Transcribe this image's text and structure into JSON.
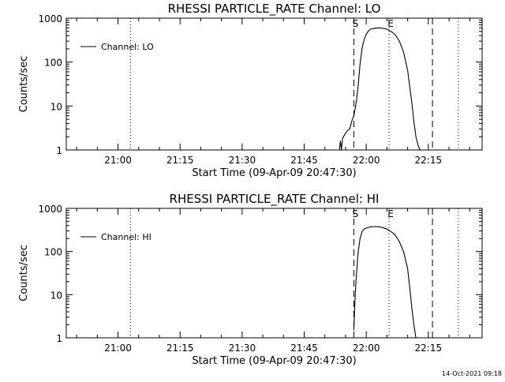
{
  "footer": {
    "timestamp": "14-Oct-2021 09:18"
  },
  "chart_data": [
    {
      "type": "line",
      "title": "RHESSI PARTICLE_RATE Channel: LO",
      "xlabel": "Start Time (09-Apr-09 20:47:30)",
      "ylabel": "Counts/sec",
      "yscale": "log",
      "xlim": [
        "20:47:30",
        "22:28:00"
      ],
      "ylim": [
        1,
        1000
      ],
      "xticks": [
        "21:00",
        "21:15",
        "21:30",
        "21:45",
        "22:00",
        "22:15"
      ],
      "yticks": [
        "1",
        "10",
        "100",
        "1000"
      ],
      "legend": {
        "position": "top-left",
        "entries": [
          "Channel: LO"
        ]
      },
      "series": [
        {
          "name": "Channel: LO",
          "x": [
            "21:53:30",
            "21:53:45",
            "21:54:00",
            "21:54:15",
            "21:54:30",
            "21:55:00",
            "21:55:30",
            "21:56:00",
            "21:56:30",
            "21:57:00",
            "21:57:30",
            "21:58:00",
            "21:58:30",
            "21:59:00",
            "21:59:30",
            "22:00:00",
            "22:00:30",
            "22:01:00",
            "22:02:00",
            "22:03:00",
            "22:04:00",
            "22:05:00",
            "22:06:00",
            "22:07:00",
            "22:08:00",
            "22:09:00",
            "22:10:00",
            "22:11:00",
            "22:11:30",
            "22:12:00",
            "22:12:30",
            "22:13:00"
          ],
          "y": [
            1.0,
            1.6,
            1.0,
            1.8,
            2.0,
            2.4,
            2.8,
            3.0,
            4.5,
            6.0,
            11,
            26,
            90,
            210,
            330,
            430,
            510,
            560,
            590,
            600,
            590,
            560,
            500,
            420,
            300,
            170,
            65,
            12,
            4.5,
            2.0,
            1.3,
            1.0
          ]
        }
      ],
      "annotations": [
        {
          "type": "dotted-line",
          "x": "21:03:00"
        },
        {
          "type": "dashed-line",
          "x": "21:57:00",
          "label": "S"
        },
        {
          "type": "dotted-line",
          "x": "22:05:30",
          "label": "E"
        },
        {
          "type": "dashed-line",
          "x": "22:16:00"
        },
        {
          "type": "dotted-line",
          "x": "22:22:15"
        }
      ]
    },
    {
      "type": "line",
      "title": "RHESSI PARTICLE_RATE Channel: HI",
      "xlabel": "Start Time (09-Apr-09 20:47:30)",
      "ylabel": "Counts/sec",
      "yscale": "log",
      "xlim": [
        "20:47:30",
        "22:28:00"
      ],
      "ylim": [
        1,
        1000
      ],
      "xticks": [
        "21:00",
        "21:15",
        "21:30",
        "21:45",
        "22:00",
        "22:15"
      ],
      "yticks": [
        "1",
        "10",
        "100",
        "1000"
      ],
      "legend": {
        "position": "top-left",
        "entries": [
          "Channel: HI"
        ]
      },
      "series": [
        {
          "name": "Channel: HI",
          "x": [
            "21:57:00",
            "21:57:15",
            "21:57:30",
            "21:58:00",
            "21:58:30",
            "21:59:00",
            "21:59:30",
            "22:00:00",
            "22:01:00",
            "22:02:00",
            "22:03:00",
            "22:04:00",
            "22:05:00",
            "22:06:00",
            "22:07:00",
            "22:08:00",
            "22:09:00",
            "22:10:00",
            "22:10:30",
            "22:11:00",
            "22:11:30",
            "22:12:00"
          ],
          "y": [
            1.5,
            7,
            20,
            90,
            200,
            290,
            330,
            350,
            370,
            380,
            375,
            360,
            330,
            290,
            240,
            170,
            100,
            40,
            15,
            5,
            2,
            1.0
          ]
        }
      ],
      "annotations": [
        {
          "type": "dotted-line",
          "x": "21:03:00"
        },
        {
          "type": "dashed-line",
          "x": "21:57:00",
          "label": "S"
        },
        {
          "type": "dotted-line",
          "x": "22:05:30",
          "label": "E"
        },
        {
          "type": "dashed-line",
          "x": "22:16:00"
        },
        {
          "type": "dotted-line",
          "x": "22:22:15"
        }
      ]
    }
  ]
}
